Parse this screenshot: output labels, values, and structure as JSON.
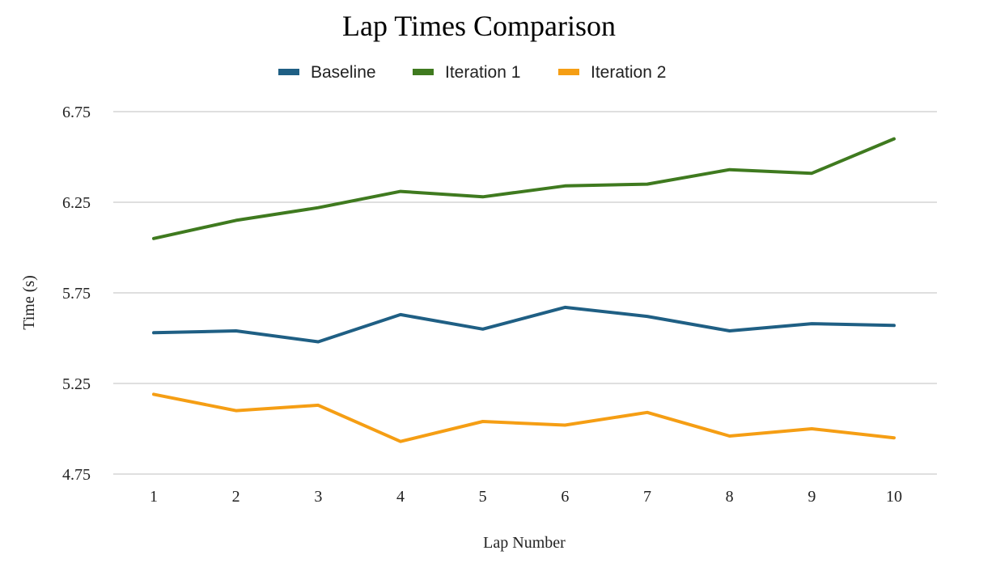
{
  "chart_data": {
    "type": "line",
    "title": "Lap Times Comparison",
    "xlabel": "Lap Number",
    "ylabel": "Time (s)",
    "categories": [
      "1",
      "2",
      "3",
      "4",
      "5",
      "6",
      "7",
      "8",
      "9",
      "10"
    ],
    "ylim": [
      4.75,
      6.75
    ],
    "yticks": [
      "4.75",
      "5.25",
      "5.75",
      "6.25",
      "6.75"
    ],
    "grid": "horizontal",
    "legend_position": "top",
    "series": [
      {
        "name": "Baseline",
        "color": "#1f5f84",
        "values": [
          5.53,
          5.54,
          5.48,
          5.63,
          5.55,
          5.67,
          5.62,
          5.54,
          5.58,
          5.57
        ]
      },
      {
        "name": "Iteration 1",
        "color": "#3f7a1f",
        "values": [
          6.05,
          6.15,
          6.22,
          6.31,
          6.28,
          6.34,
          6.35,
          6.43,
          6.41,
          6.6
        ]
      },
      {
        "name": "Iteration 2",
        "color": "#f59e14",
        "values": [
          5.19,
          5.1,
          5.13,
          4.93,
          5.04,
          5.02,
          5.09,
          4.96,
          5.0,
          4.95
        ]
      }
    ]
  }
}
